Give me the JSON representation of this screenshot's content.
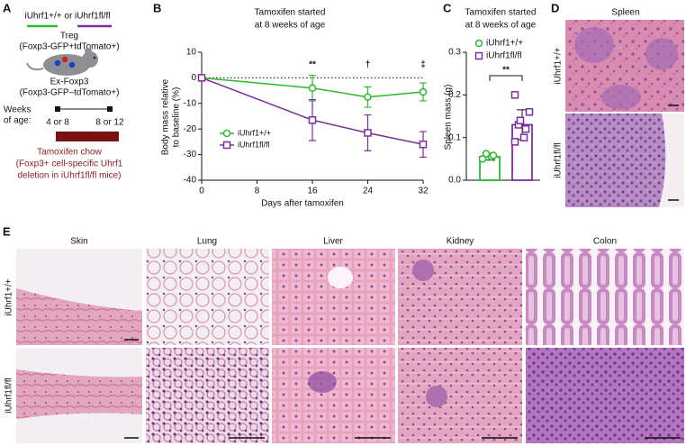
{
  "figure": {
    "panel_a": {
      "letter": "A",
      "genotypes": "iUhrf1+/+ or iUhrf1fl/fl",
      "treg": "Treg",
      "treg_marker": "(Foxp3-GFP+tdTomato+)",
      "exfoxp3": "Ex-Foxp3",
      "exfoxp3_marker": "(Foxp3-GFP–tdTomato+)",
      "weeks_label": [
        "Weeks",
        "of age:"
      ],
      "start": "4 or 8",
      "end": "8 or 12",
      "chow": [
        "Tamoxifen chow",
        "(Foxp3+ cell-specific Uhrf1",
        "deletion in iUhrf1fl/fl mice)"
      ]
    },
    "panel_d": {
      "letter": "D",
      "title": "Spleen",
      "rows": [
        "iUhrf1+/+",
        "iUhrf1fl/fl"
      ]
    },
    "panel_e": {
      "letter": "E",
      "columns": [
        "Skin",
        "Lung",
        "Liver",
        "Kidney",
        "Colon"
      ],
      "rows": [
        "iUhrf1+/+",
        "iUhrf1fl/fl"
      ]
    }
  },
  "chart_data": [
    {
      "type": "line",
      "letter": "B",
      "title": [
        "Tamoxifen started",
        "at 8 weeks of age"
      ],
      "xlabel": "Days after tamoxifen",
      "ylabel": [
        "Body mass relative",
        "to baseline (%)"
      ],
      "x": [
        0,
        16,
        24,
        32
      ],
      "xlim": [
        0,
        32
      ],
      "xticks": [
        0,
        8,
        16,
        24,
        32
      ],
      "ylim": [
        -40,
        10
      ],
      "yticks": [
        -40,
        -30,
        -20,
        -10,
        0,
        10
      ],
      "reference_line": 0,
      "legend": "left",
      "series": [
        {
          "name": "iUhrf1+/+",
          "color": "#2db82d",
          "marker": "circle",
          "values": [
            0,
            -4,
            -7.5,
            -5.5
          ],
          "errors": [
            0,
            5,
            4,
            3.5
          ]
        },
        {
          "name": "iUhrf1fl/fl",
          "color": "#7b2f9e",
          "marker": "square",
          "values": [
            0,
            -16.5,
            -21.5,
            -26
          ],
          "errors": [
            0,
            8,
            7,
            5
          ]
        }
      ],
      "annotations": [
        {
          "text": "**",
          "x": 16
        },
        {
          "text": "†",
          "x": 24
        },
        {
          "text": "‡",
          "x": 32
        }
      ]
    },
    {
      "type": "bar",
      "letter": "C",
      "title": [
        "Tamoxifen started",
        "at 8 weeks of age"
      ],
      "ylabel": "Spleen mass (g)",
      "ylim": [
        0,
        0.3
      ],
      "yticks": [
        {
          "value": 0,
          "label": "0.0"
        },
        0.1,
        0.2,
        0.3
      ],
      "significance": "**",
      "series": [
        {
          "name": "iUhrf1+/+",
          "color": "#2db82d",
          "marker": "circle",
          "values": [
            0.055
          ],
          "errors": [
            0.008
          ],
          "points": [
            0.05,
            0.055,
            0.058,
            0.062
          ]
        },
        {
          "name": "iUhrf1fl/fl",
          "color": "#7b2f9e",
          "marker": "square",
          "values": [
            0.13
          ],
          "errors": [
            0.035
          ],
          "points": [
            0.09,
            0.1,
            0.12,
            0.13,
            0.14,
            0.16,
            0.2
          ]
        }
      ]
    }
  ]
}
